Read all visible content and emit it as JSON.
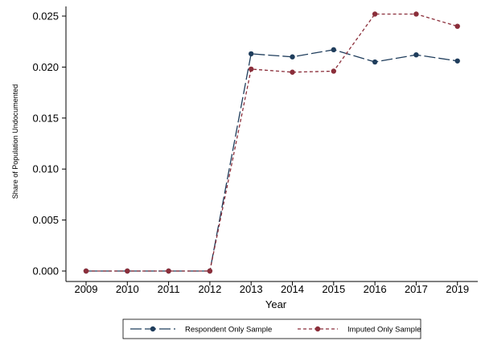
{
  "chart_data": {
    "type": "line",
    "title": "",
    "xlabel": "Year",
    "ylabel": "Share of Population Undocumented",
    "x": [
      "2009",
      "2010",
      "2011",
      "2012",
      "2013",
      "2014",
      "2015",
      "2016",
      "2017",
      "2019"
    ],
    "yticks": [
      "0.000",
      "0.005",
      "0.010",
      "0.015",
      "0.020",
      "0.025"
    ],
    "ylim": [
      0,
      0.026
    ],
    "grid": false,
    "legend_position": "bottom",
    "series": [
      {
        "name": "Respondent Only Sample",
        "color": "#1f3d5c",
        "line_style": "long-dash",
        "values": [
          0.0,
          0.0,
          0.0,
          0.0,
          0.0213,
          0.021,
          0.0217,
          0.0205,
          0.0212,
          0.0206
        ]
      },
      {
        "name": "Imputed Only Sample",
        "color": "#8b2e3a",
        "line_style": "short-dash",
        "values": [
          0.0,
          0.0,
          0.0,
          0.0,
          0.0198,
          0.0195,
          0.0196,
          0.0252,
          0.0252,
          0.024
        ]
      }
    ]
  }
}
